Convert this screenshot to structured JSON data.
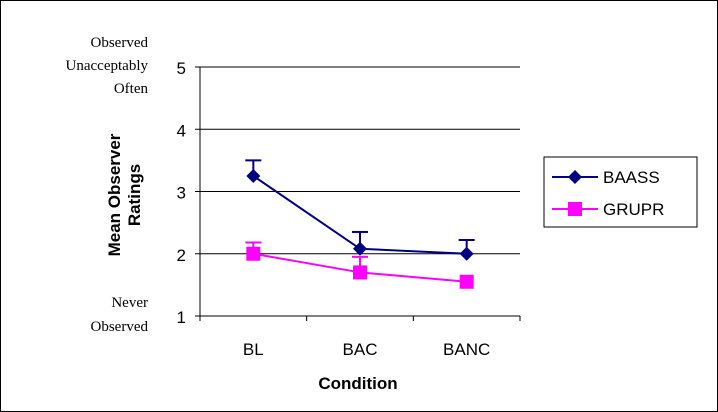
{
  "chart_data": {
    "type": "line",
    "title": "",
    "xlabel": "Condition",
    "ylabel_lines": [
      "Mean Observer",
      "Ratings"
    ],
    "categories": [
      "BL",
      "BAC",
      "BANC"
    ],
    "ylim": [
      1,
      5
    ],
    "yticks": [
      1,
      2,
      3,
      4,
      5
    ],
    "grid": true,
    "legend_position": "right",
    "y_annotations": {
      "top": [
        "Observed",
        "Unacceptably",
        "Often"
      ],
      "bottom": [
        "Never",
        "Observed"
      ]
    },
    "series": [
      {
        "name": "BAASS",
        "color": "#000080",
        "marker": "diamond",
        "values": [
          3.25,
          2.08,
          2.0
        ],
        "error_upper": [
          3.5,
          2.35,
          2.22
        ]
      },
      {
        "name": "GRUPR",
        "color": "#ff00ff",
        "marker": "square",
        "values": [
          2.0,
          1.7,
          1.55
        ],
        "error_upper": [
          2.18,
          1.95,
          1.55
        ]
      }
    ]
  }
}
